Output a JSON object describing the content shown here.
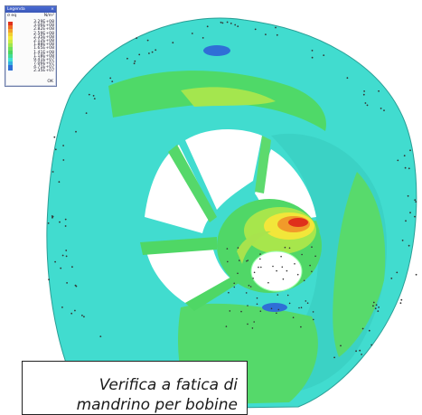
{
  "legend": {
    "window_title": "Legenda",
    "close_glyph": "×",
    "component_label": "σ eq",
    "unit_header": "N/m²",
    "values": [
      "3.29E+08",
      "3.06E+08",
      "2.82E+08",
      "2.59E+08",
      "2.35E+08",
      "2.12E+08",
      "1.88E+08",
      "1.65E+08",
      "1.41E+08",
      "1.18E+08",
      "9.41E+07",
      "7.06E+07",
      "4.71E+07",
      "2.35E+07"
    ],
    "footer": "OK"
  },
  "caption": {
    "line1": "Verifica a fatica di",
    "line2": "mandrino per bobine"
  },
  "colors": {
    "cyan": "#3fe0d2",
    "green": "#4bd662",
    "light_green": "#9ee64f",
    "yellow": "#f2ea3a",
    "orange": "#f2a12a",
    "red": "#e0321c",
    "blue": "#2e6fd6"
  }
}
